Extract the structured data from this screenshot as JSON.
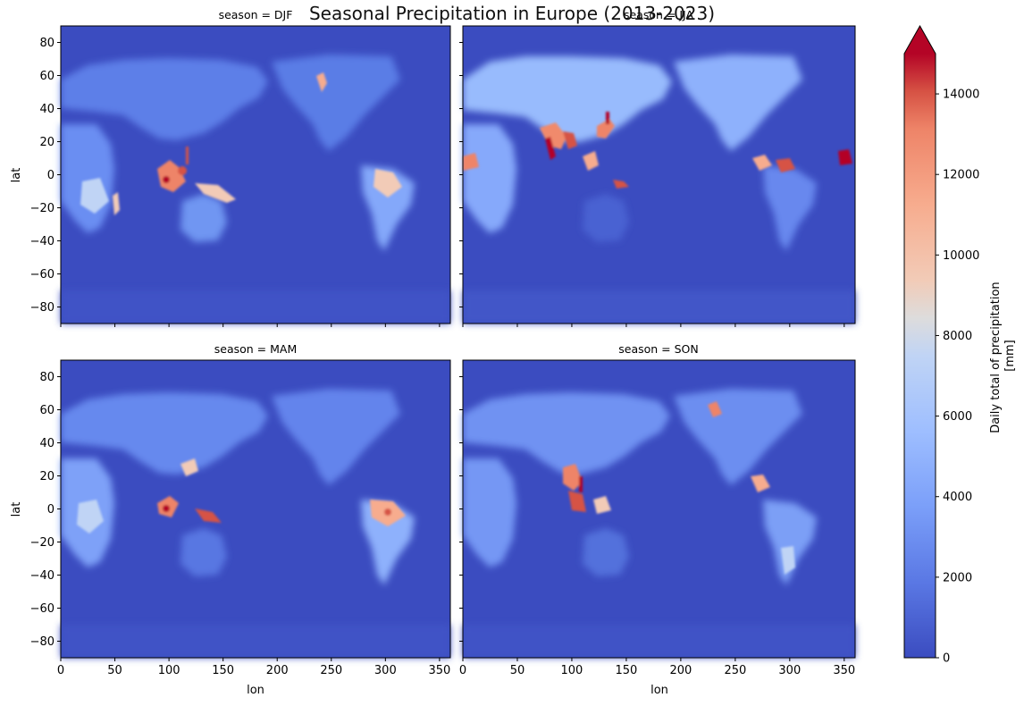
{
  "chart_data": {
    "type": "heatmap",
    "title": "Seasonal Precipitation in Europe (2013-2023)",
    "colormap": "coolwarm",
    "colorbar": {
      "label_line1": "Daily total of precipitation",
      "label_line2": "[mm]",
      "range": [
        0,
        15000
      ],
      "extend": "max",
      "ticks": [
        0,
        2000,
        4000,
        6000,
        8000,
        10000,
        12000,
        14000
      ],
      "tick_labels": [
        "0",
        "2000",
        "4000",
        "6000",
        "8000",
        "10000",
        "12000",
        "14000"
      ]
    },
    "xlabel": "lon",
    "ylabel": "lat",
    "xlim": [
      0,
      360
    ],
    "ylim": [
      -90,
      90
    ],
    "xticks": [
      0,
      50,
      100,
      150,
      200,
      250,
      300,
      350
    ],
    "xtick_labels": [
      "0",
      "50",
      "100",
      "150",
      "200",
      "250",
      "300",
      "350"
    ],
    "yticks": [
      80,
      60,
      40,
      20,
      0,
      -20,
      -40,
      -60,
      -80
    ],
    "ytick_labels": [
      "80",
      "60",
      "40",
      "20",
      "0",
      "−20",
      "−40",
      "−60",
      "−80"
    ],
    "panels": [
      {
        "title": "season = DJF"
      },
      {
        "title": "season = JJA"
      },
      {
        "title": "season = MAM"
      },
      {
        "title": "season = SON"
      }
    ],
    "colors": {
      "ocean": "#3b4cc0",
      "extreme": "#b40426"
    }
  }
}
